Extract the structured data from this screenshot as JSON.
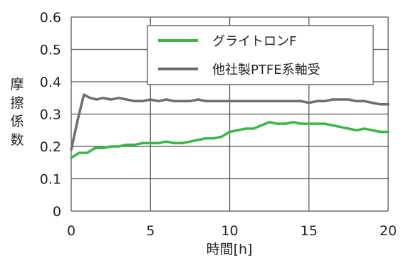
{
  "chart_data": {
    "type": "line",
    "xlabel": "時間[h]",
    "ylabel": "摩擦係数",
    "xlim": [
      0,
      20
    ],
    "ylim": [
      0,
      0.6
    ],
    "x_ticks": [
      "0",
      "5",
      "10",
      "15",
      "20"
    ],
    "y_ticks": [
      "0",
      "0.1",
      "0.2",
      "0.3",
      "0.4",
      "0.5",
      "0.6"
    ],
    "grid": true,
    "legend_position": "top-right",
    "series": [
      {
        "name": "グライトロンF",
        "color": "#3cb54a",
        "x": [
          0,
          0.5,
          1,
          1.5,
          2,
          2.5,
          3,
          3.5,
          4,
          4.5,
          5,
          5.5,
          6,
          6.5,
          7,
          7.5,
          8,
          8.5,
          9,
          9.5,
          10,
          10.5,
          11,
          11.5,
          12,
          12.5,
          13,
          13.5,
          14,
          14.5,
          15,
          15.5,
          16,
          16.5,
          17,
          17.5,
          18,
          18.5,
          19,
          19.5,
          20
        ],
        "y": [
          0.165,
          0.18,
          0.18,
          0.195,
          0.195,
          0.2,
          0.2,
          0.205,
          0.205,
          0.21,
          0.21,
          0.21,
          0.215,
          0.21,
          0.21,
          0.215,
          0.22,
          0.225,
          0.225,
          0.23,
          0.245,
          0.25,
          0.255,
          0.255,
          0.265,
          0.275,
          0.27,
          0.27,
          0.275,
          0.27,
          0.27,
          0.27,
          0.27,
          0.265,
          0.26,
          0.255,
          0.25,
          0.255,
          0.25,
          0.245,
          0.245
        ]
      },
      {
        "name": "他社製PTFE系軸受",
        "color": "#6e6e6e",
        "x": [
          0,
          0.4,
          0.8,
          1.2,
          1.6,
          2,
          2.5,
          3,
          3.5,
          4,
          4.5,
          5,
          5.5,
          6,
          6.5,
          7,
          7.5,
          8,
          8.5,
          9,
          9.5,
          10,
          10.5,
          11,
          11.5,
          12,
          12.5,
          13,
          13.5,
          14,
          14.5,
          15,
          15.5,
          16,
          16.5,
          17,
          17.5,
          18,
          18.5,
          19,
          19.5,
          20
        ],
        "y": [
          0.19,
          0.28,
          0.36,
          0.35,
          0.345,
          0.35,
          0.345,
          0.35,
          0.345,
          0.34,
          0.34,
          0.345,
          0.34,
          0.345,
          0.34,
          0.34,
          0.34,
          0.345,
          0.34,
          0.34,
          0.34,
          0.34,
          0.34,
          0.34,
          0.34,
          0.34,
          0.34,
          0.34,
          0.34,
          0.34,
          0.34,
          0.335,
          0.34,
          0.34,
          0.345,
          0.345,
          0.345,
          0.34,
          0.34,
          0.335,
          0.33,
          0.33
        ]
      }
    ]
  }
}
